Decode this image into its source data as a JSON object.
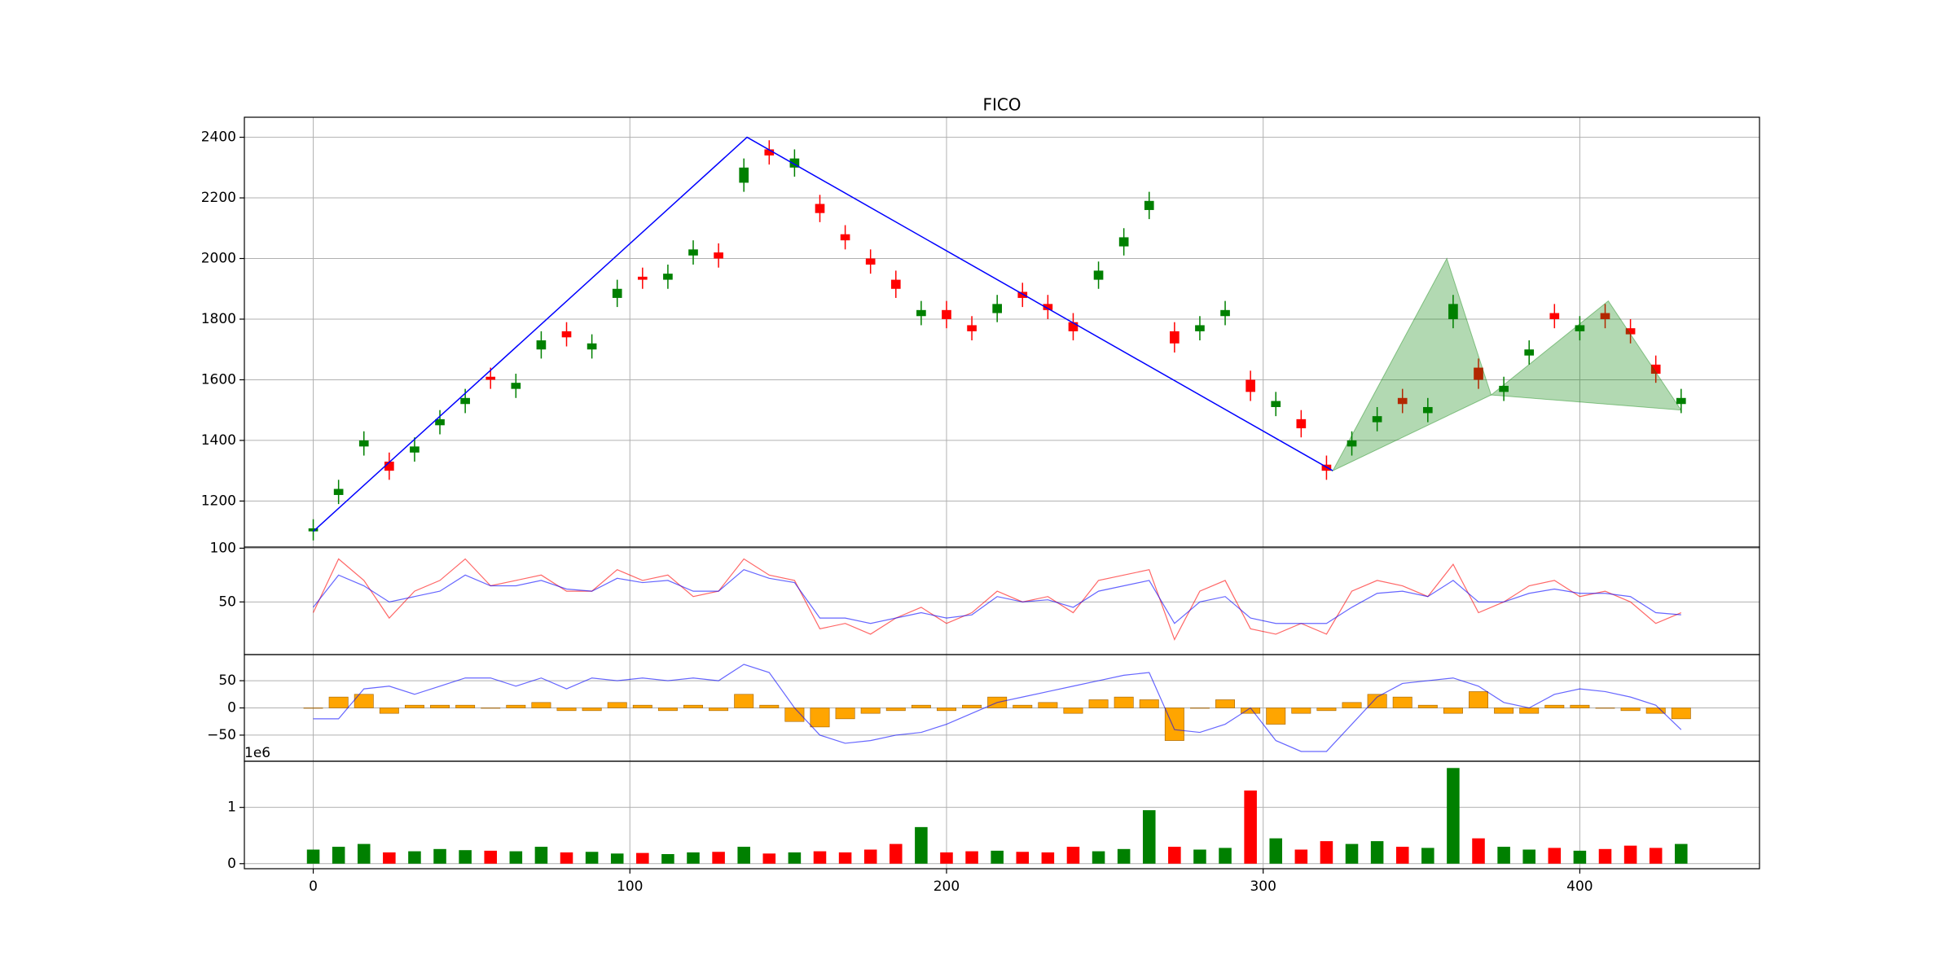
{
  "chart_data": [
    {
      "type": "candlestick",
      "title": "FICO",
      "x": [
        0,
        8,
        16,
        24,
        32,
        40,
        48,
        56,
        64,
        72,
        80,
        88,
        96,
        104,
        112,
        120,
        128,
        136,
        144,
        152,
        160,
        168,
        176,
        184,
        192,
        200,
        208,
        216,
        224,
        232,
        240,
        248,
        256,
        264,
        272,
        280,
        288,
        296,
        304,
        312,
        320,
        328,
        336,
        344,
        352,
        360,
        368,
        376,
        384,
        392,
        400,
        408,
        416,
        424,
        432
      ],
      "open": [
        1100,
        1220,
        1380,
        1330,
        1360,
        1450,
        1520,
        1610,
        1570,
        1700,
        1760,
        1700,
        1870,
        1940,
        1930,
        2010,
        2020,
        2250,
        2360,
        2300,
        2180,
        2080,
        2000,
        1930,
        1810,
        1830,
        1780,
        1820,
        1890,
        1850,
        1790,
        1930,
        2040,
        2160,
        1760,
        1760,
        1810,
        1600,
        1510,
        1470,
        1320,
        1380,
        1460,
        1540,
        1490,
        1800,
        1640,
        1560,
        1680,
        1820,
        1760,
        1820,
        1770,
        1650,
        1520
      ],
      "high": [
        1140,
        1270,
        1430,
        1360,
        1410,
        1500,
        1570,
        1640,
        1620,
        1760,
        1790,
        1750,
        1930,
        1970,
        1980,
        2060,
        2050,
        2330,
        2390,
        2360,
        2210,
        2110,
        2030,
        1960,
        1860,
        1860,
        1810,
        1880,
        1920,
        1880,
        1820,
        1990,
        2100,
        2220,
        1790,
        1810,
        1860,
        1630,
        1560,
        1500,
        1350,
        1430,
        1510,
        1570,
        1540,
        1880,
        1670,
        1610,
        1730,
        1850,
        1810,
        1850,
        1800,
        1680,
        1570
      ],
      "low": [
        1070,
        1190,
        1350,
        1270,
        1330,
        1420,
        1490,
        1570,
        1540,
        1670,
        1710,
        1670,
        1840,
        1900,
        1900,
        1980,
        1970,
        2220,
        2310,
        2270,
        2120,
        2030,
        1950,
        1870,
        1780,
        1770,
        1730,
        1790,
        1840,
        1800,
        1730,
        1900,
        2010,
        2130,
        1690,
        1730,
        1780,
        1530,
        1480,
        1410,
        1270,
        1350,
        1430,
        1490,
        1460,
        1770,
        1570,
        1530,
        1650,
        1770,
        1730,
        1770,
        1720,
        1590,
        1490
      ],
      "close": [
        1110,
        1240,
        1400,
        1300,
        1380,
        1470,
        1540,
        1600,
        1590,
        1730,
        1740,
        1720,
        1900,
        1930,
        1950,
        2030,
        2000,
        2300,
        2340,
        2330,
        2150,
        2060,
        1980,
        1900,
        1830,
        1800,
        1760,
        1850,
        1870,
        1830,
        1760,
        1960,
        2070,
        2190,
        1720,
        1780,
        1830,
        1560,
        1530,
        1440,
        1300,
        1400,
        1480,
        1520,
        1510,
        1850,
        1600,
        1580,
        1700,
        1800,
        1780,
        1800,
        1750,
        1620,
        1540
      ],
      "up_color": "green",
      "down_color": "red",
      "overlays": [
        {
          "type": "line",
          "x": [
            0,
            137,
            322
          ],
          "values": [
            1100,
            2400,
            1300
          ],
          "color": "blue"
        },
        {
          "type": "area",
          "x": [
            322,
            358,
            372,
            409,
            432
          ],
          "values": [
            1300,
            2000,
            1550,
            1860,
            1500
          ],
          "color": "green"
        }
      ],
      "xlim": [
        -21.75,
        456.75
      ],
      "xticks": [
        0,
        100,
        200,
        300,
        400
      ],
      "ylim": [
        1048,
        2466
      ],
      "yticks": [
        1200,
        1400,
        1600,
        1800,
        2000,
        2200,
        2400
      ],
      "grid": true
    },
    {
      "type": "line",
      "x": [
        0,
        8,
        16,
        24,
        32,
        40,
        48,
        56,
        64,
        72,
        80,
        88,
        96,
        104,
        112,
        120,
        128,
        136,
        144,
        152,
        160,
        168,
        176,
        184,
        192,
        200,
        208,
        216,
        224,
        232,
        240,
        248,
        256,
        264,
        272,
        280,
        288,
        296,
        304,
        312,
        320,
        328,
        336,
        344,
        352,
        360,
        368,
        376,
        384,
        392,
        400,
        408,
        416,
        424,
        432
      ],
      "series": [
        {
          "color": "red",
          "values": [
            40,
            90,
            70,
            35,
            60,
            70,
            90,
            65,
            70,
            75,
            60,
            60,
            80,
            70,
            75,
            55,
            60,
            90,
            75,
            70,
            25,
            30,
            20,
            35,
            45,
            30,
            40,
            60,
            50,
            55,
            40,
            70,
            75,
            80,
            15,
            60,
            70,
            25,
            20,
            30,
            20,
            60,
            70,
            65,
            55,
            85,
            40,
            50,
            65,
            70,
            55,
            60,
            50,
            30,
            40
          ]
        },
        {
          "color": "blue",
          "values": [
            45,
            75,
            65,
            50,
            55,
            60,
            75,
            65,
            65,
            70,
            62,
            60,
            72,
            68,
            70,
            60,
            60,
            80,
            72,
            68,
            35,
            35,
            30,
            35,
            40,
            35,
            38,
            55,
            50,
            52,
            45,
            60,
            65,
            70,
            30,
            50,
            55,
            35,
            30,
            30,
            30,
            45,
            58,
            60,
            55,
            70,
            50,
            50,
            58,
            62,
            58,
            58,
            55,
            40,
            38
          ]
        }
      ],
      "xlim": [
        -21.75,
        456.75
      ],
      "xticks": [
        0,
        100,
        200,
        300,
        400
      ],
      "ylim": [
        1,
        101
      ],
      "yticks": [
        50,
        100
      ],
      "grid": true
    },
    {
      "type": "combo",
      "x": [
        0,
        8,
        16,
        24,
        32,
        40,
        48,
        56,
        64,
        72,
        80,
        88,
        96,
        104,
        112,
        120,
        128,
        136,
        144,
        152,
        160,
        168,
        176,
        184,
        192,
        200,
        208,
        216,
        224,
        232,
        240,
        248,
        256,
        264,
        272,
        280,
        288,
        296,
        304,
        312,
        320,
        328,
        336,
        344,
        352,
        360,
        368,
        376,
        384,
        392,
        400,
        408,
        416,
        424,
        432
      ],
      "series": [
        {
          "type": "bar",
          "color": "orange",
          "values": [
            0,
            20,
            25,
            -10,
            5,
            5,
            5,
            0,
            5,
            10,
            -5,
            -5,
            10,
            5,
            -5,
            5,
            -5,
            25,
            5,
            -25,
            -35,
            -20,
            -10,
            -5,
            5,
            -5,
            5,
            20,
            5,
            10,
            -10,
            15,
            20,
            15,
            -60,
            0,
            15,
            -10,
            -30,
            -10,
            -5,
            10,
            25,
            20,
            5,
            -10,
            30,
            -10,
            -10,
            5,
            5,
            0,
            -5,
            -10,
            -20
          ]
        },
        {
          "type": "line",
          "color": "blue",
          "values": [
            -20,
            -20,
            35,
            40,
            25,
            40,
            55,
            55,
            40,
            55,
            35,
            55,
            50,
            55,
            50,
            55,
            50,
            80,
            65,
            0,
            -50,
            -65,
            -60,
            -50,
            -45,
            -30,
            -10,
            10,
            20,
            30,
            40,
            50,
            60,
            65,
            -40,
            -45,
            -30,
            0,
            -60,
            -80,
            -80,
            -30,
            20,
            45,
            50,
            55,
            40,
            10,
            0,
            25,
            35,
            30,
            20,
            5,
            -40
          ]
        }
      ],
      "xlim": [
        -21.75,
        456.75
      ],
      "xticks": [
        0,
        100,
        200,
        300,
        400
      ],
      "ylim": [
        -98,
        98
      ],
      "yticks": [
        {
          "value": -50,
          "label": "−50"
        },
        0,
        50
      ],
      "grid": true
    },
    {
      "type": "bar",
      "offset_label": "1e6",
      "x": [
        0,
        8,
        16,
        24,
        32,
        40,
        48,
        56,
        64,
        72,
        80,
        88,
        96,
        104,
        112,
        120,
        128,
        136,
        144,
        152,
        160,
        168,
        176,
        184,
        192,
        200,
        208,
        216,
        224,
        232,
        240,
        248,
        256,
        264,
        272,
        280,
        288,
        296,
        304,
        312,
        320,
        328,
        336,
        344,
        352,
        360,
        368,
        376,
        384,
        392,
        400,
        408,
        416,
        424,
        432
      ],
      "values": [
        250000,
        300000,
        350000,
        200000,
        220000,
        260000,
        240000,
        230000,
        220000,
        300000,
        200000,
        210000,
        180000,
        190000,
        170000,
        200000,
        210000,
        300000,
        180000,
        200000,
        220000,
        200000,
        250000,
        350000,
        650000,
        200000,
        220000,
        230000,
        210000,
        200000,
        300000,
        220000,
        260000,
        950000,
        300000,
        250000,
        280000,
        1300000,
        450000,
        250000,
        400000,
        350000,
        400000,
        300000,
        280000,
        1700000,
        450000,
        300000,
        250000,
        280000,
        230000,
        260000,
        320000,
        280000,
        350000
      ],
      "up_color": "green",
      "down_color": "red",
      "xlim": [
        -21.75,
        456.75
      ],
      "xticks": [
        0,
        100,
        200,
        300,
        400
      ],
      "ylim": [
        -90000,
        1820000
      ],
      "yticks": [
        0,
        {
          "value": 1000000,
          "label": "1"
        }
      ],
      "grid": true
    }
  ]
}
